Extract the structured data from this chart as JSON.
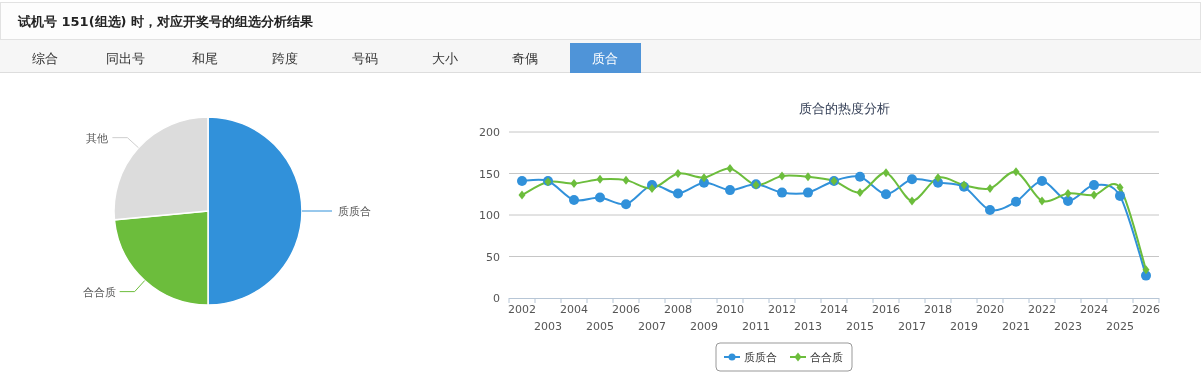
{
  "chart_data": [
    {
      "type": "other",
      "title": "试机号 151(组选) 时，对应开奖号的组选分析结果",
      "annotations": [
        "综合",
        "同出号",
        "和尾",
        "跨度",
        "号码",
        "大小",
        "奇偶",
        "质合"
      ]
    },
    {
      "type": "pie",
      "categories": [
        "质质合",
        "合合质",
        "其他"
      ],
      "values": [
        50,
        23.5,
        26.5
      ],
      "colors": [
        "#3191da",
        "#6cbd3c",
        "#dcdcdc"
      ]
    },
    {
      "type": "line",
      "title": "质合的热度分析",
      "categories": [
        "2002",
        "2003",
        "2004",
        "2005",
        "2006",
        "2007",
        "2008",
        "2009",
        "2010",
        "2011",
        "2012",
        "2013",
        "2014",
        "2015",
        "2016",
        "2017",
        "2018",
        "2019",
        "2020",
        "2021",
        "2022",
        "2023",
        "2024",
        "2025",
        "2026"
      ],
      "series": [
        {
          "name": "质质合",
          "color": "#3191da",
          "marker": "circle",
          "values": [
            141,
            141,
            118,
            121,
            113,
            136,
            126,
            139,
            130,
            137,
            127,
            127,
            141,
            146,
            125,
            143,
            139,
            134,
            106,
            116,
            141,
            117,
            136,
            123,
            27
          ]
        },
        {
          "name": "合合质",
          "color": "#6cbd3c",
          "marker": "diamond",
          "values": [
            124,
            140,
            138,
            143,
            142,
            132,
            150,
            145,
            156,
            136,
            147,
            146,
            141,
            127,
            151,
            117,
            145,
            136,
            132,
            152,
            117,
            126,
            124,
            133,
            34
          ]
        }
      ],
      "ylim": [
        0,
        200
      ],
      "yticks": [
        0,
        50,
        100,
        150,
        200
      ],
      "grid": "y",
      "legend": "bottom"
    }
  ]
}
